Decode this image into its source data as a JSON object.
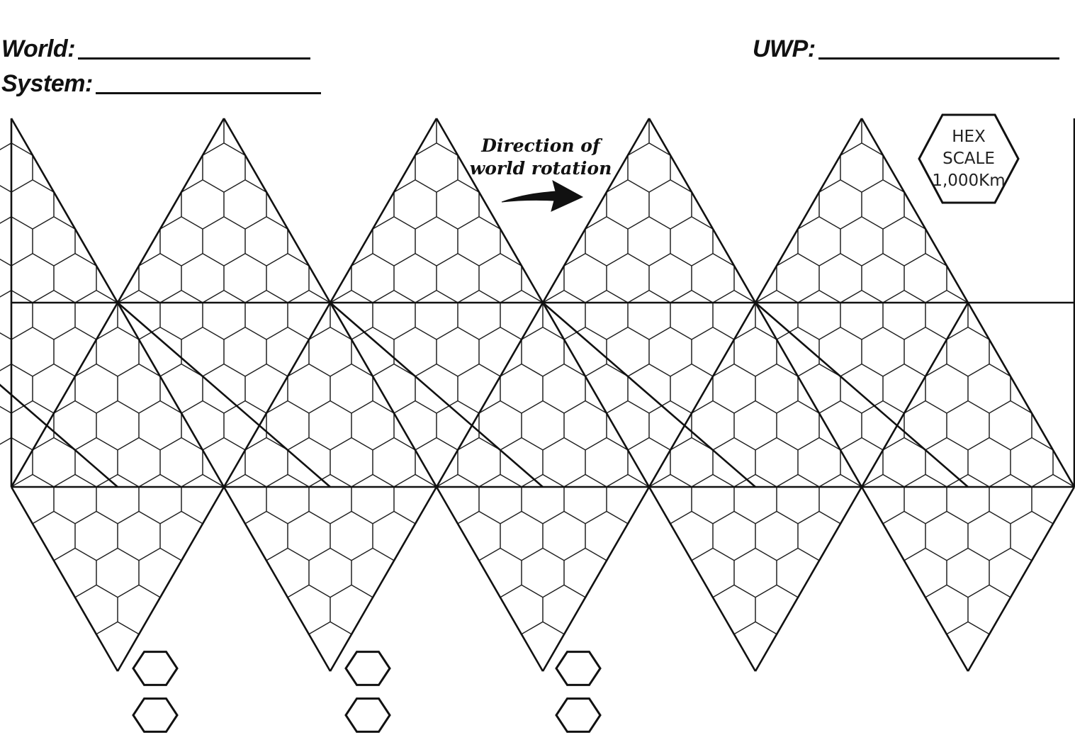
{
  "header": {
    "world_label": "World:",
    "system_label": "System:",
    "uwp_label": "UWP:"
  },
  "rotation_note": {
    "line1": "Direction of",
    "line2": "world rotation",
    "icon": "curved-arrow-right-icon"
  },
  "hex_scale": {
    "line1": "HEX",
    "line2": "SCALE",
    "line3": "1,000Km",
    "icon": "hexagon-icon"
  },
  "map": {
    "type": "icosahedral world map (icosahedron net)",
    "faces": 20,
    "grid": "hexagonal",
    "hexes_per_face_edge": 5,
    "spare_hex_pairs": 3
  },
  "colors": {
    "ink": "#111111",
    "grid_ink": "#222222",
    "paper": "#ffffff"
  }
}
